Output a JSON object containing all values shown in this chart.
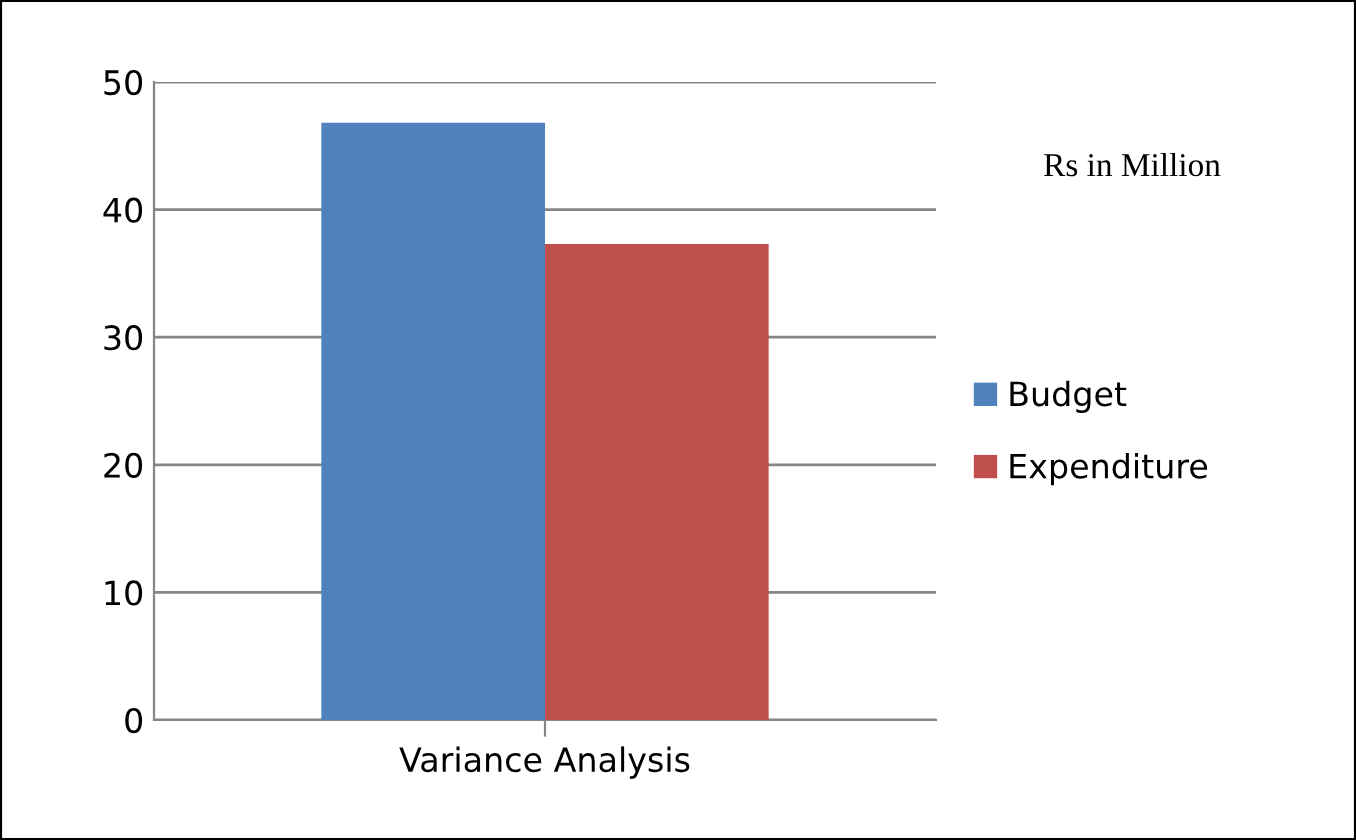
{
  "chart_data": {
    "type": "bar",
    "categories": [
      "Variance Analysis"
    ],
    "series": [
      {
        "name": "Budget",
        "color": "#4f81bd",
        "values": [
          46.8
        ]
      },
      {
        "name": "Expenditure",
        "color": "#c0504d",
        "values": [
          37.3
        ]
      }
    ],
    "ylim": [
      0,
      50
    ],
    "yticks": [
      0,
      10,
      20,
      30,
      40,
      50
    ],
    "grid": "y",
    "legend": "right",
    "annotations": [
      "Rs in Million"
    ]
  }
}
